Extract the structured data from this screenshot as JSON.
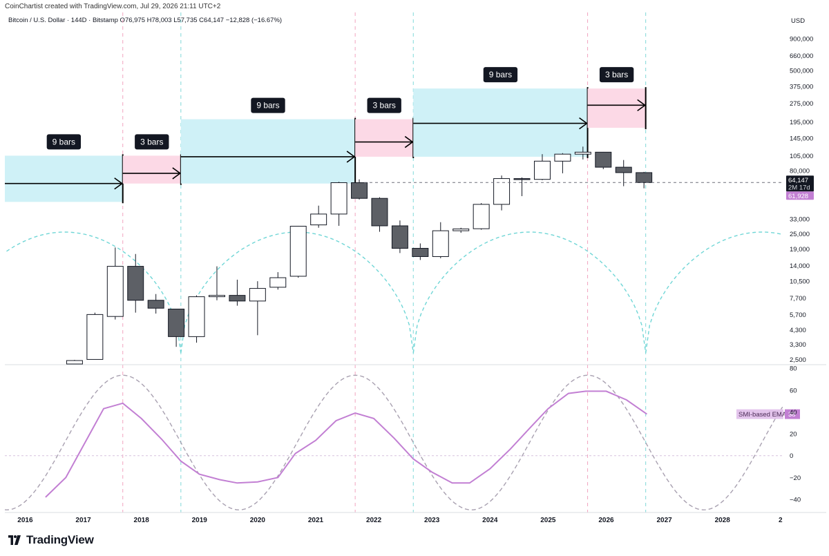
{
  "header": {
    "attribution": "CoinChartist created with TradingView.com, Jul 29, 2026 21:11 UTC+2",
    "symbol_line": "Bitcoin / U.S. Dollar · 144D · Bitstamp  O76,975  H78,003  L57,735  C64,147  −12,828 (−16.67%)"
  },
  "footer": {
    "brand": "TradingView"
  },
  "colors": {
    "bull": "#ffffff",
    "bear": "#5d6066",
    "wick": "#131722",
    "nine_bar_box": "#cff1f7",
    "three_bar_box": "#fcd9e6",
    "cycle_dashed": "#6fd6d6",
    "smi": "#c27fd3",
    "smi_ema_dash": "#a8a0b0",
    "vline_teal": "#7fd8d8",
    "vline_pink": "#f2a3bf"
  },
  "chart_data": [
    {
      "type": "candlestick",
      "title": "Bitcoin / U.S. Dollar · 144D · Bitstamp",
      "y_axis_label": "USD",
      "y_scale": "log",
      "ylim": [
        2300,
        1100000
      ],
      "x_range": [
        2015.65,
        2029.05
      ],
      "x_tick_labels": [
        "2016",
        "2017",
        "2018",
        "2019",
        "2020",
        "2021",
        "2022",
        "2023",
        "2024",
        "2025",
        "2026",
        "2027",
        "2028",
        "2"
      ],
      "y_tick_labels": [
        "900,000",
        "660,000",
        "500,000",
        "375,000",
        "275,000",
        "195,000",
        "145,000",
        "105,000",
        "80,000",
        "33,000",
        "25,000",
        "19,000",
        "14,000",
        "10,500",
        "7,700",
        "5,700",
        "4,300",
        "3,300",
        "2,500"
      ],
      "price_labels": {
        "last": "64,147",
        "countdown": "2M 17d",
        "ema": "61,928"
      },
      "candles": [
        {
          "t": 2016.85,
          "o": 2300,
          "h": 2480,
          "l": 2300,
          "c": 2450
        },
        {
          "t": 2017.2,
          "o": 2500,
          "h": 5900,
          "l": 2500,
          "c": 5700
        },
        {
          "t": 2017.55,
          "o": 5500,
          "h": 19500,
          "l": 5200,
          "c": 13800
        },
        {
          "t": 2017.9,
          "o": 13800,
          "h": 17300,
          "l": 5900,
          "c": 7400
        },
        {
          "t": 2018.25,
          "o": 7400,
          "h": 8300,
          "l": 5800,
          "c": 6400
        },
        {
          "t": 2018.6,
          "o": 6300,
          "h": 6300,
          "l": 3150,
          "c": 3800
        },
        {
          "t": 2018.95,
          "o": 3800,
          "h": 8100,
          "l": 3400,
          "c": 7900
        },
        {
          "t": 2019.3,
          "o": 7900,
          "h": 13800,
          "l": 7400,
          "c": 8100
        },
        {
          "t": 2019.65,
          "o": 8100,
          "h": 10800,
          "l": 6700,
          "c": 7300
        },
        {
          "t": 2020.0,
          "o": 7300,
          "h": 10500,
          "l": 3900,
          "c": 9200
        },
        {
          "t": 2020.35,
          "o": 9400,
          "h": 12400,
          "l": 9000,
          "c": 11200
        },
        {
          "t": 2020.7,
          "o": 11500,
          "h": 29000,
          "l": 11200,
          "c": 28800
        },
        {
          "t": 2021.05,
          "o": 29500,
          "h": 42000,
          "l": 28000,
          "c": 36000
        },
        {
          "t": 2021.4,
          "o": 36000,
          "h": 65000,
          "l": 29000,
          "c": 64000
        },
        {
          "t": 2021.75,
          "o": 64000,
          "h": 68000,
          "l": 47000,
          "c": 48000
        },
        {
          "t": 2022.1,
          "o": 48000,
          "h": 49000,
          "l": 26000,
          "c": 29000
        },
        {
          "t": 2022.45,
          "o": 29000,
          "h": 32000,
          "l": 17600,
          "c": 19200
        },
        {
          "t": 2022.8,
          "o": 19200,
          "h": 21000,
          "l": 15500,
          "c": 16500
        },
        {
          "t": 2023.15,
          "o": 16500,
          "h": 31000,
          "l": 16000,
          "c": 26500
        },
        {
          "t": 2023.5,
          "o": 26500,
          "h": 28000,
          "l": 25500,
          "c": 27400
        },
        {
          "t": 2023.85,
          "o": 27500,
          "h": 44000,
          "l": 27000,
          "c": 43000
        },
        {
          "t": 2024.2,
          "o": 43000,
          "h": 73000,
          "l": 38500,
          "c": 69000
        },
        {
          "t": 2024.55,
          "o": 69000,
          "h": 70500,
          "l": 50000,
          "c": 68000
        },
        {
          "t": 2024.9,
          "o": 68000,
          "h": 108000,
          "l": 67000,
          "c": 95000
        },
        {
          "t": 2025.25,
          "o": 95000,
          "h": 110000,
          "l": 76000,
          "c": 108000
        },
        {
          "t": 2025.6,
          "o": 108000,
          "h": 124000,
          "l": 98000,
          "c": 112000
        },
        {
          "t": 2025.95,
          "o": 112000,
          "h": 112500,
          "l": 82000,
          "c": 85000
        },
        {
          "t": 2026.3,
          "o": 85000,
          "h": 97000,
          "l": 60000,
          "c": 76975
        },
        {
          "t": 2026.65,
          "o": 76975,
          "h": 78003,
          "l": 57735,
          "c": 64147
        }
      ],
      "current_price": 64147,
      "cycle_boxes": [
        {
          "label": "9 bars",
          "kind": "nine",
          "x_start": 2015.65,
          "x_end": 2017.68,
          "y_top": 105000,
          "y_bottom": 45000,
          "arrow_y": 63000
        },
        {
          "label": "3 bars",
          "kind": "three",
          "x_start": 2017.68,
          "x_end": 2018.68,
          "y_top": 105000,
          "y_bottom": 63000,
          "arrow_y": 76000
        },
        {
          "label": "9 bars",
          "kind": "nine",
          "x_start": 2018.68,
          "x_end": 2021.68,
          "y_top": 205000,
          "y_bottom": 63000,
          "arrow_y": 103000
        },
        {
          "label": "3 bars",
          "kind": "three",
          "x_start": 2021.68,
          "x_end": 2022.68,
          "y_top": 205000,
          "y_bottom": 103000,
          "arrow_y": 135000
        },
        {
          "label": "9 bars",
          "kind": "nine",
          "x_start": 2022.68,
          "x_end": 2025.68,
          "y_top": 360000,
          "y_bottom": 103000,
          "arrow_y": 190000
        },
        {
          "label": "3 bars",
          "kind": "three",
          "x_start": 2025.68,
          "x_end": 2026.68,
          "y_top": 360000,
          "y_bottom": 175000,
          "arrow_y": 265000
        }
      ],
      "cycle_lows": [
        2014.68,
        2018.68,
        2022.68,
        2026.68,
        2030.68
      ],
      "vlines": [
        {
          "x": 2017.68,
          "kind": "pink"
        },
        {
          "x": 2018.68,
          "kind": "teal"
        },
        {
          "x": 2021.68,
          "kind": "pink"
        },
        {
          "x": 2022.68,
          "kind": "teal"
        },
        {
          "x": 2025.68,
          "kind": "pink"
        },
        {
          "x": 2026.68,
          "kind": "teal"
        }
      ]
    },
    {
      "type": "line",
      "series": [
        {
          "name": "SMI-based EMA",
          "last_value_label": "38",
          "points": [
            [
              2016.35,
              -38
            ],
            [
              2016.7,
              -20
            ],
            [
              2017.35,
              43
            ],
            [
              2017.68,
              48
            ],
            [
              2018.0,
              34
            ],
            [
              2018.35,
              15
            ],
            [
              2018.68,
              -5
            ],
            [
              2019.0,
              -17
            ],
            [
              2019.35,
              -22
            ],
            [
              2019.65,
              -25
            ],
            [
              2020.0,
              -24
            ],
            [
              2020.35,
              -20
            ],
            [
              2020.65,
              2
            ],
            [
              2021.0,
              14
            ],
            [
              2021.35,
              32
            ],
            [
              2021.68,
              39
            ],
            [
              2022.0,
              34
            ],
            [
              2022.35,
              16
            ],
            [
              2022.68,
              -3
            ],
            [
              2023.0,
              -15
            ],
            [
              2023.35,
              -25
            ],
            [
              2023.65,
              -25
            ],
            [
              2024.0,
              -12
            ],
            [
              2024.35,
              6
            ],
            [
              2024.68,
              25
            ],
            [
              2025.0,
              43
            ],
            [
              2025.35,
              57
            ],
            [
              2025.65,
              59
            ],
            [
              2026.0,
              59
            ],
            [
              2026.35,
              51
            ],
            [
              2026.7,
              38
            ]
          ]
        }
      ],
      "cycle_projection": {
        "amplitude": 70,
        "peaks": [
          2017.68,
          2021.68,
          2025.68,
          2029.68
        ],
        "period": 4
      },
      "ylim": [
        -52,
        82
      ],
      "y_tick_labels": [
        "80",
        "60",
        "40",
        "20",
        "0",
        "−20",
        "−40"
      ],
      "zero_line": true
    }
  ]
}
